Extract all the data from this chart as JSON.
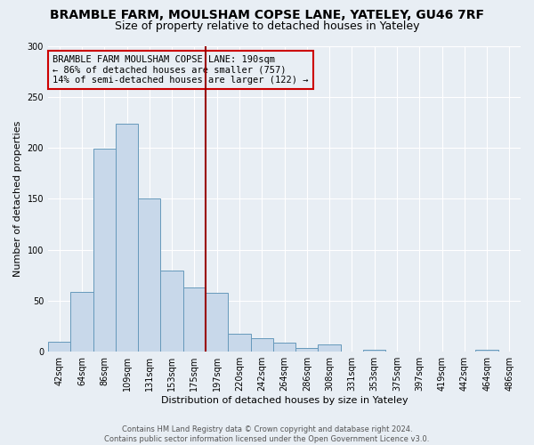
{
  "title": "BRAMBLE FARM, MOULSHAM COPSE LANE, YATELEY, GU46 7RF",
  "subtitle": "Size of property relative to detached houses in Yateley",
  "xlabel": "Distribution of detached houses by size in Yateley",
  "ylabel": "Number of detached properties",
  "bar_labels": [
    "42sqm",
    "64sqm",
    "86sqm",
    "109sqm",
    "131sqm",
    "153sqm",
    "175sqm",
    "197sqm",
    "220sqm",
    "242sqm",
    "264sqm",
    "286sqm",
    "308sqm",
    "331sqm",
    "353sqm",
    "375sqm",
    "397sqm",
    "419sqm",
    "442sqm",
    "464sqm",
    "486sqm"
  ],
  "bar_values": [
    10,
    59,
    199,
    224,
    150,
    80,
    63,
    58,
    18,
    13,
    9,
    4,
    7,
    0,
    2,
    0,
    0,
    0,
    0,
    2,
    0
  ],
  "bar_color": "#c8d8ea",
  "bar_edge_color": "#6699bb",
  "ylim": [
    0,
    300
  ],
  "yticks": [
    0,
    50,
    100,
    150,
    200,
    250,
    300
  ],
  "vline_index": 7,
  "vline_color": "#990000",
  "annotation_text_line1": "BRAMBLE FARM MOULSHAM COPSE LANE: 190sqm",
  "annotation_text_line2": "← 86% of detached houses are smaller (757)",
  "annotation_text_line3": "14% of semi-detached houses are larger (122) →",
  "annotation_box_edge_color": "#cc0000",
  "footer_line1": "Contains HM Land Registry data © Crown copyright and database right 2024.",
  "footer_line2": "Contains public sector information licensed under the Open Government Licence v3.0.",
  "background_color": "#e8eef4",
  "plot_bg_color": "#e8eef4",
  "grid_color": "#ffffff",
  "title_fontsize": 10,
  "subtitle_fontsize": 9,
  "tick_label_fontsize": 7,
  "ylabel_fontsize": 8,
  "xlabel_fontsize": 8,
  "annotation_fontsize": 7.5,
  "footer_fontsize": 6
}
